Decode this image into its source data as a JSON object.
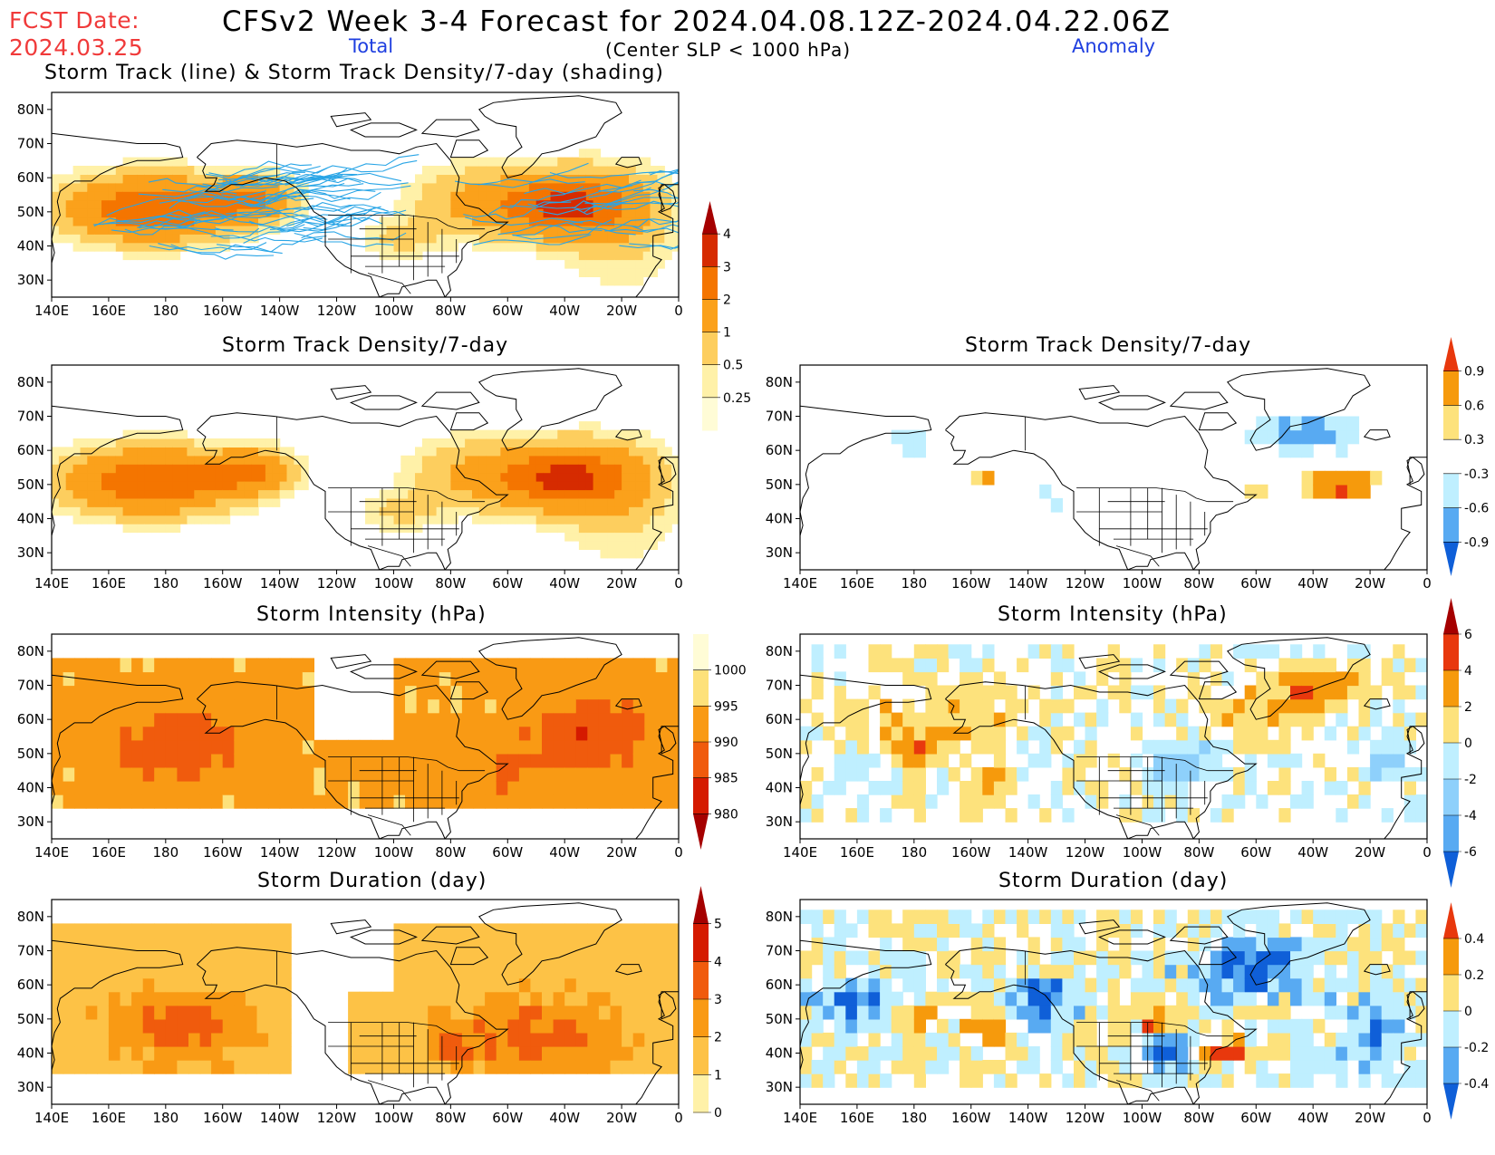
{
  "header": {
    "fcst_label": "FCST Date:",
    "fcst_date": "2024.03.25",
    "title": "CFSv2 Week 3-4 Forecast for 2024.04.08.12Z-2024.04.22.06Z",
    "total_label": "Total",
    "anomaly_label": "Anomaly",
    "subtitle": "(Center SLP < 1000 hPa)"
  },
  "axes": {
    "lat_labels": [
      "80N",
      "70N",
      "60N",
      "50N",
      "40N",
      "30N"
    ],
    "lon_labels": [
      "140E",
      "160E",
      "180",
      "160W",
      "140W",
      "120W",
      "100W",
      "80W",
      "60W",
      "40W",
      "20W",
      "0"
    ]
  },
  "panels": {
    "p1": {
      "title": "Storm Track (line) & Storm Track Density/7-day (shading)",
      "column": "Total"
    },
    "p2": {
      "title": "Storm Track Density/7-day",
      "column": "Total"
    },
    "p3": {
      "title": "Storm Track Density/7-day",
      "column": "Anomaly"
    },
    "p4": {
      "title": "Storm Intensity (hPa)",
      "column": "Total"
    },
    "p5": {
      "title": "Storm Intensity (hPa)",
      "column": "Anomaly"
    },
    "p6": {
      "title": "Storm Duration (day)",
      "column": "Total"
    },
    "p7": {
      "title": "Storm Duration (day)",
      "column": "Anomaly"
    }
  },
  "colorbars": {
    "density_total": {
      "labels": [
        "4",
        "3",
        "2",
        "1",
        "0.5",
        "0.25"
      ],
      "colors": [
        "#a50000",
        "#d62b00",
        "#f47500",
        "#fba11b",
        "#fdce5e",
        "#fff1a8",
        "#fffcd6"
      ]
    },
    "density_anom": {
      "labels": [
        "0.9",
        "0.6",
        "0.3",
        "-0.3",
        "-0.6",
        "-0.9"
      ],
      "colors": [
        "#e8380d",
        "#f69a0c",
        "#fde27c",
        "#ffffff",
        "#bfefff",
        "#58aaf2",
        "#0f5fd8"
      ]
    },
    "intensity_total": {
      "labels": [
        "1000",
        "995",
        "990",
        "985",
        "980"
      ],
      "colors": [
        "#fffcd6",
        "#fde17a",
        "#f99a14",
        "#f05b0d",
        "#d51a00",
        "#a50000"
      ]
    },
    "intensity_anom": {
      "labels": [
        "6",
        "4",
        "2",
        "0",
        "-2",
        "-4",
        "-6"
      ],
      "colors": [
        "#a50000",
        "#e8380d",
        "#f69a0c",
        "#fde27c",
        "#bfefff",
        "#8ed0fb",
        "#58aaf2",
        "#0f5fd8"
      ]
    },
    "duration_total": {
      "labels": [
        "5",
        "4",
        "3",
        "2",
        "1",
        "0"
      ],
      "colors": [
        "#a50000",
        "#d51a00",
        "#f05b0d",
        "#f99a14",
        "#fdc246",
        "#fff1a8"
      ]
    },
    "duration_anom": {
      "labels": [
        "0.4",
        "0.2",
        "0",
        "-0.2",
        "-0.4"
      ],
      "colors": [
        "#e8380d",
        "#f69a0c",
        "#fde27c",
        "#bfefff",
        "#58aaf2",
        "#0f5fd8"
      ]
    }
  }
}
